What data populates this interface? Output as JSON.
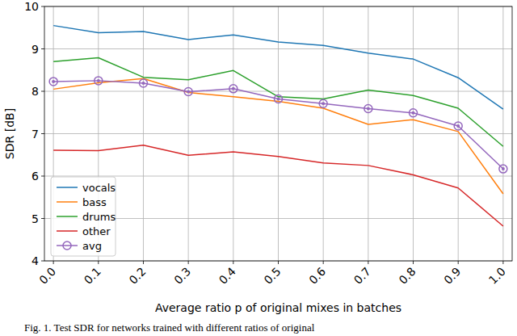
{
  "chart_data": {
    "type": "line",
    "caption": "Fig. 1. Test SDR for networks trained with different ratios of original",
    "x_label": "Average ratio p of original mixes in batches",
    "y_label": "SDR [dB]",
    "x": [
      0.0,
      0.1,
      0.2,
      0.3,
      0.4,
      0.5,
      0.6,
      0.7,
      0.8,
      0.9,
      1.0
    ],
    "series": [
      {
        "name": "vocals",
        "color": "#1f77b4",
        "values": [
          9.55,
          9.38,
          9.41,
          9.22,
          9.33,
          9.16,
          9.08,
          8.9,
          8.76,
          8.32,
          7.58
        ]
      },
      {
        "name": "bass",
        "color": "#ff7f0e",
        "values": [
          8.05,
          8.2,
          8.3,
          7.97,
          7.87,
          7.76,
          7.6,
          7.22,
          7.33,
          7.05,
          5.58
        ]
      },
      {
        "name": "drums",
        "color": "#2ca02c",
        "values": [
          8.7,
          8.79,
          8.33,
          8.27,
          8.49,
          7.87,
          7.82,
          8.03,
          7.9,
          7.6,
          6.7
        ]
      },
      {
        "name": "other",
        "color": "#d62728",
        "values": [
          6.61,
          6.6,
          6.73,
          6.49,
          6.57,
          6.46,
          6.31,
          6.25,
          6.03,
          5.72,
          4.82
        ]
      },
      {
        "name": "avg",
        "color": "#9467bd",
        "marker": "circle",
        "values": [
          8.23,
          8.25,
          8.19,
          7.99,
          8.06,
          7.82,
          7.71,
          7.59,
          7.49,
          7.18,
          6.17
        ]
      }
    ],
    "xlim": [
      -0.02,
      1.02
    ],
    "ylim": [
      4,
      10
    ],
    "xticks": [
      {
        "value": 0.0,
        "label": "0.0"
      },
      0.1,
      0.2,
      0.3,
      0.4,
      0.5,
      0.6,
      0.7,
      0.8,
      0.9,
      {
        "value": 1.0,
        "label": "1.0"
      }
    ],
    "yticks": [
      4,
      5,
      6,
      7,
      8,
      9,
      10
    ],
    "grid": true,
    "legend": "lower left"
  }
}
